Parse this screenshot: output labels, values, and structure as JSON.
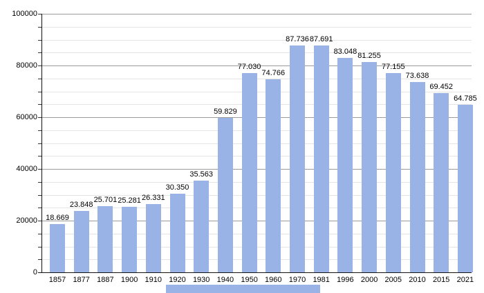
{
  "chart_data": {
    "type": "bar",
    "title": "",
    "xlabel": "",
    "ylabel": "",
    "categories": [
      "1857",
      "1877",
      "1887",
      "1900",
      "1910",
      "1920",
      "1930",
      "1940",
      "1950",
      "1960",
      "1970",
      "1981",
      "1996",
      "2000",
      "2005",
      "2010",
      "2015",
      "2021"
    ],
    "values": [
      18669,
      23848,
      25701,
      25281,
      26331,
      30350,
      35563,
      59829,
      77030,
      74766,
      87736,
      87691,
      83048,
      81255,
      77155,
      73638,
      69452,
      64785
    ],
    "value_labels": [
      "18.669",
      "23.848",
      "25.701",
      "25.281",
      "26.331",
      "30.350",
      "35.563",
      "59.829",
      "77.030",
      "74.766",
      "87.736",
      "87.691",
      "83.048",
      "81.255",
      "77.155",
      "73.638",
      "69.452",
      "64.785"
    ],
    "y_tick_labels": [
      "0",
      "20000",
      "40000",
      "60000",
      "80000",
      "100000"
    ],
    "ylim": [
      0,
      100000
    ],
    "y_major_step": 20000,
    "y_minor_step": 5000,
    "bar_color": "#99b3e6",
    "grid": "horizontal major and minor gridlines",
    "legend_position": "none"
  },
  "decor": {
    "bottom_strip_color": "#99b3e6"
  }
}
